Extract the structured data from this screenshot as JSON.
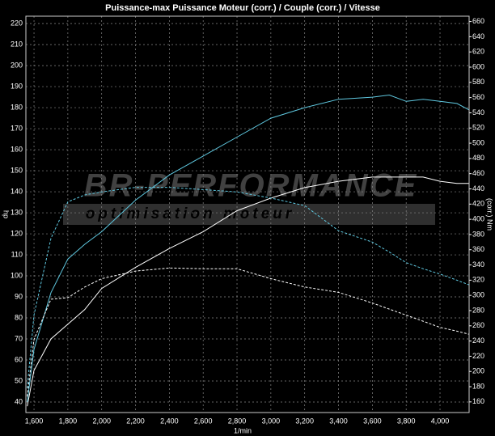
{
  "chart_data": {
    "type": "line",
    "title": "Puissance-max Puissance Moteur (corr.) / Couple (corr.) / Vitesse",
    "x_label": "1/min",
    "y_label": "hp",
    "y2_label": "(corr.) Nm",
    "annotations": [
      "BR-PERFORMANCE",
      "optimisation moteur"
    ],
    "x": [
      1560,
      1600,
      1700,
      1800,
      1900,
      2000,
      2200,
      2400,
      2600,
      2800,
      3000,
      3200,
      3400,
      3600,
      3700,
      3800,
      3900,
      4000,
      4100,
      4170
    ],
    "series": [
      {
        "color": "#5fc8e0",
        "dashed": false,
        "values": [
          40,
          65,
          92,
          108,
          115,
          121,
          136,
          148,
          157,
          166,
          175,
          180,
          184,
          185,
          186,
          183,
          184,
          183,
          182,
          179
        ]
      },
      {
        "color": "#ffffff",
        "dashed": false,
        "values": [
          38,
          55,
          70,
          77,
          84,
          94,
          104,
          113,
          121,
          131,
          137,
          142,
          145,
          147,
          147,
          147,
          147,
          145,
          144,
          144
        ]
      },
      {
        "color": "#5fc8e0",
        "dashed": true,
        "axis": "y2",
        "values": [
          178,
          274,
          375,
          423,
          432,
          436,
          442,
          442,
          439,
          436,
          428,
          418,
          385,
          370,
          357,
          343,
          335,
          328,
          320,
          314
        ]
      },
      {
        "color": "#ffffff",
        "dashed": true,
        "axis": "y2",
        "values": [
          167,
          242,
          295,
          297,
          311,
          322,
          332,
          336,
          335,
          335,
          322,
          311,
          304,
          290,
          282,
          274,
          266,
          258,
          253,
          249
        ]
      }
    ],
    "xlim": [
      1552,
      4172
    ],
    "xticks": [
      {
        "value": 1600,
        "label": "1,600"
      },
      {
        "value": 1800,
        "label": "1,800"
      },
      {
        "value": 2000,
        "label": "2,000"
      },
      {
        "value": 2200,
        "label": "2,200"
      },
      {
        "value": 2400,
        "label": "2,400"
      },
      {
        "value": 2600,
        "label": "2,600"
      },
      {
        "value": 2800,
        "label": "2,800"
      },
      {
        "value": 3000,
        "label": "3,000"
      },
      {
        "value": 3200,
        "label": "3,200"
      },
      {
        "value": 3400,
        "label": "3,400"
      },
      {
        "value": 3600,
        "label": "3,600"
      },
      {
        "value": 3800,
        "label": "3,800"
      },
      {
        "value": 4000,
        "label": "4,000"
      }
    ],
    "ylim": [
      35,
      223.5
    ],
    "yticks": [
      40,
      50,
      60,
      70,
      80,
      90,
      100,
      110,
      120,
      130,
      140,
      150,
      160,
      170,
      180,
      190,
      200,
      210,
      220
    ],
    "y2lim": [
      146,
      667
    ],
    "y2ticks": [
      160,
      180,
      200,
      220,
      240,
      260,
      280,
      300,
      320,
      340,
      360,
      380,
      400,
      420,
      440,
      460,
      480,
      500,
      520,
      540,
      560,
      580,
      600,
      620,
      640,
      660
    ],
    "grid": true
  }
}
